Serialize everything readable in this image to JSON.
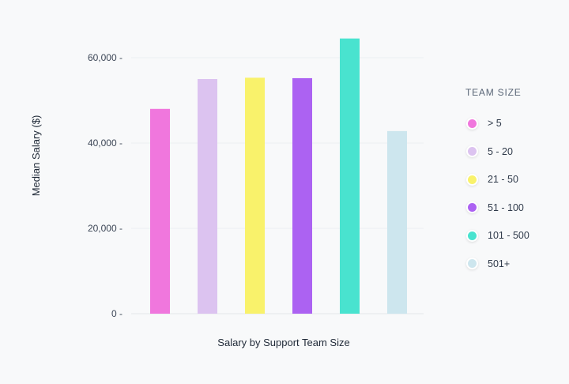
{
  "chart_data": {
    "type": "bar",
    "title": "Salary by Support Team Size",
    "xlabel": "Salary by Support Team Size",
    "ylabel": "Median Salary ($)",
    "categories": [
      "> 5",
      "5 - 20",
      "21 - 50",
      "51 - 100",
      "101 - 500",
      "501+"
    ],
    "values": [
      48000,
      55000,
      55300,
      55200,
      64500,
      42800
    ],
    "colors": [
      "#f077dd",
      "#dcc3f0",
      "#f9f26b",
      "#ac62f2",
      "#49e3cf",
      "#cde6ee"
    ],
    "ylim": [
      0,
      65000
    ],
    "yticks": [
      0,
      20000,
      40000,
      60000
    ],
    "ytick_labels": [
      "0 -",
      "20,000 -",
      "40,000 -",
      "60,000 -"
    ],
    "grid": true,
    "legend_placement": "right",
    "legend_title": "TEAM SIZE"
  }
}
